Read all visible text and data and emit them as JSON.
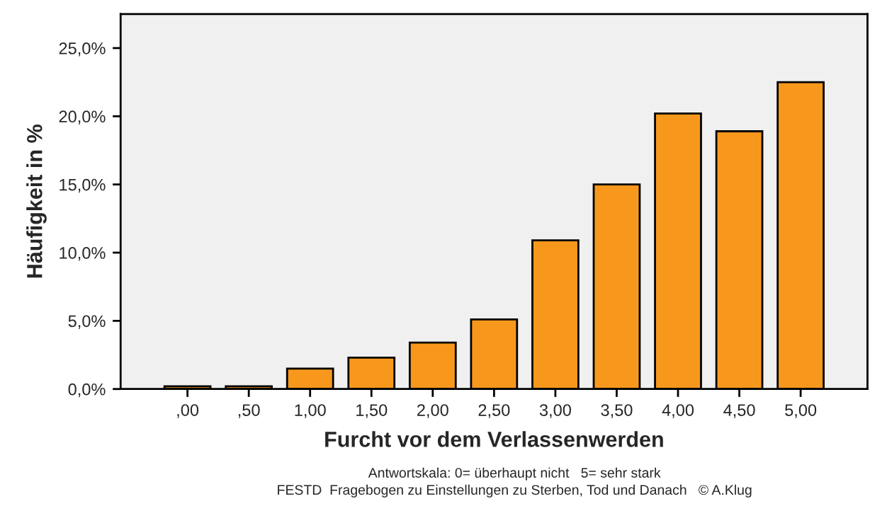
{
  "chart_data": {
    "type": "bar",
    "xlabel": "Furcht vor dem Verlassenwerden",
    "ylabel": "Häufigkeit in %",
    "categories": [
      ",00",
      ",50",
      "1,00",
      "1,50",
      "2,00",
      "2,50",
      "3,00",
      "3,50",
      "4,00",
      "4,50",
      "5,00"
    ],
    "values": [
      0.2,
      0.2,
      1.5,
      2.3,
      3.4,
      5.1,
      10.9,
      15.0,
      20.2,
      18.9,
      22.5
    ],
    "color": "#f7981d",
    "ylim": [
      0,
      27.5
    ],
    "yticks": [
      {
        "value": 0,
        "label": "0,0%"
      },
      {
        "value": 5,
        "label": "5,0%"
      },
      {
        "value": 10,
        "label": "10,0%"
      },
      {
        "value": 15,
        "label": "15,0%"
      },
      {
        "value": 20,
        "label": "20,0%"
      },
      {
        "value": 25,
        "label": "25,0%"
      }
    ],
    "grid": false,
    "annotations": [
      "Antwortskala: 0= überhaupt nicht   5= sehr stark",
      "FESTD  Fragebogen zu Einstellungen zu Sterben, Tod und Danach   © A.Klug"
    ]
  }
}
